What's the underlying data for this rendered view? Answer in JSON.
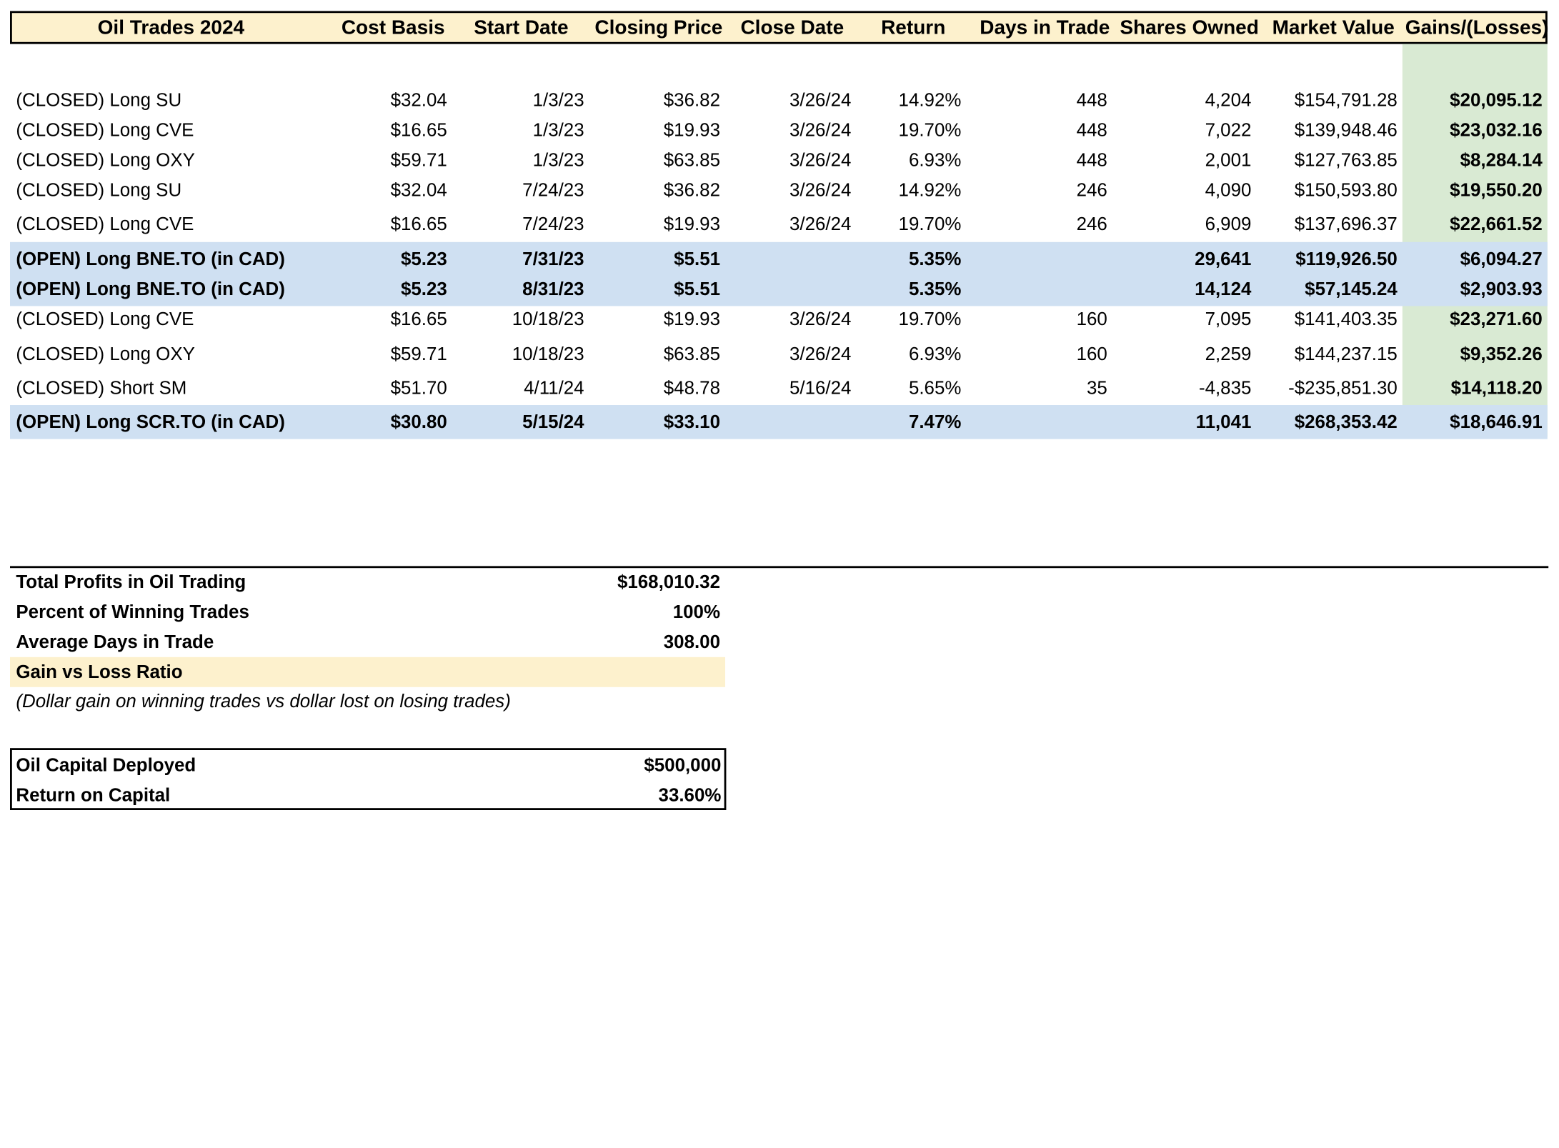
{
  "header": {
    "title": "Oil Trades 2024",
    "columns": [
      "Cost Basis",
      "Start Date",
      "Closing Price",
      "Close Date",
      "Return",
      "Days in Trade",
      "Shares Owned",
      "Market Value",
      "Gains/(Losses)"
    ]
  },
  "trades": [
    {
      "name": "(CLOSED) Long SU",
      "cost": "$32.04",
      "start": "1/3/23",
      "close_price": "$36.82",
      "close_date": "3/26/24",
      "return": "14.92%",
      "days": "448",
      "shares": "4,204",
      "market_value": "$154,791.28",
      "gains": "$20,095.12",
      "open": false
    },
    {
      "name": "(CLOSED) Long CVE",
      "cost": "$16.65",
      "start": "1/3/23",
      "close_price": "$19.93",
      "close_date": "3/26/24",
      "return": "19.70%",
      "days": "448",
      "shares": "7,022",
      "market_value": "$139,948.46",
      "gains": "$23,032.16",
      "open": false
    },
    {
      "name": "(CLOSED) Long OXY",
      "cost": "$59.71",
      "start": "1/3/23",
      "close_price": "$63.85",
      "close_date": "3/26/24",
      "return": "6.93%",
      "days": "448",
      "shares": "2,001",
      "market_value": "$127,763.85",
      "gains": "$8,284.14",
      "open": false
    },
    {
      "name": "(CLOSED) Long SU",
      "cost": "$32.04",
      "start": "7/24/23",
      "close_price": "$36.82",
      "close_date": "3/26/24",
      "return": "14.92%",
      "days": "246",
      "shares": "4,090",
      "market_value": "$150,593.80",
      "gains": "$19,550.20",
      "open": false
    },
    {
      "name": "(CLOSED) Long CVE",
      "cost": "$16.65",
      "start": "7/24/23",
      "close_price": "$19.93",
      "close_date": "3/26/24",
      "return": "19.70%",
      "days": "246",
      "shares": "6,909",
      "market_value": "$137,696.37",
      "gains": "$22,661.52",
      "open": false
    },
    {
      "name": "(OPEN) Long BNE.TO (in CAD)",
      "cost": "$5.23",
      "start": "7/31/23",
      "close_price": "$5.51",
      "close_date": "",
      "return": "5.35%",
      "days": "",
      "shares": "29,641",
      "market_value": "$119,926.50",
      "gains": "$6,094.27",
      "open": true
    },
    {
      "name": "(OPEN) Long BNE.TO (in CAD)",
      "cost": "$5.23",
      "start": "8/31/23",
      "close_price": "$5.51",
      "close_date": "",
      "return": "5.35%",
      "days": "",
      "shares": "14,124",
      "market_value": "$57,145.24",
      "gains": "$2,903.93",
      "open": true
    },
    {
      "name": "(CLOSED) Long CVE",
      "cost": "$16.65",
      "start": "10/18/23",
      "close_price": "$19.93",
      "close_date": "3/26/24",
      "return": "19.70%",
      "days": "160",
      "shares": "7,095",
      "market_value": "$141,403.35",
      "gains": "$23,271.60",
      "open": false
    },
    {
      "name": "(CLOSED) Long OXY",
      "cost": "$59.71",
      "start": "10/18/23",
      "close_price": "$63.85",
      "close_date": "3/26/24",
      "return": "6.93%",
      "days": "160",
      "shares": "2,259",
      "market_value": "$144,237.15",
      "gains": "$9,352.26",
      "open": false
    },
    {
      "name": "(CLOSED) Short SM",
      "cost": "$51.70",
      "start": "4/11/24",
      "close_price": "$48.78",
      "close_date": "5/16/24",
      "return": "5.65%",
      "days": "35",
      "shares": "-4,835",
      "market_value": "-$235,851.30",
      "gains": "$14,118.20",
      "open": false
    },
    {
      "name": "(OPEN) Long SCR.TO (in CAD)",
      "cost": "$30.80",
      "start": "5/15/24",
      "close_price": "$33.10",
      "close_date": "",
      "return": "7.47%",
      "days": "",
      "shares": "11,041",
      "market_value": "$268,353.42",
      "gains": "$18,646.91",
      "open": true
    }
  ],
  "summary": {
    "total_profits_label": "Total Profits in Oil Trading",
    "total_profits_value": "$168,010.32",
    "win_pct_label": "Percent of Winning Trades",
    "win_pct_value": "100%",
    "avg_days_label": "Average Days in Trade",
    "avg_days_value": "308.00",
    "gain_loss_label": "Gain vs Loss Ratio",
    "gain_loss_note": "(Dollar gain on winning trades vs dollar lost on losing trades)"
  },
  "capital": {
    "deployed_label": "Oil Capital Deployed",
    "deployed_value": "$500,000",
    "return_label": "Return on Capital",
    "return_value": "33.60%"
  },
  "colors": {
    "header_bg": "#fdf1cd",
    "open_row_bg": "#cfe0f2",
    "gains_col_bg": "#d9ead3"
  }
}
